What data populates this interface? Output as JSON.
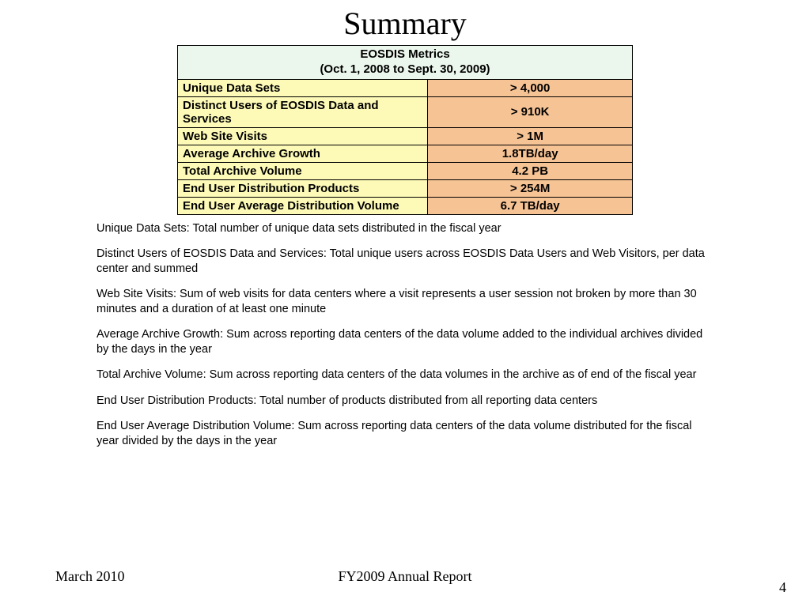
{
  "title": "Summary",
  "table": {
    "header_line1": "EOSDIS Metrics",
    "header_line2": "(Oct. 1, 2008 to Sept. 30, 2009)",
    "header_bg": "#ebf6ec",
    "label_bg": "#fdfab7",
    "value_bg": "#f6c395",
    "rows": [
      {
        "label": "Unique Data Sets",
        "value": "> 4,000"
      },
      {
        "label": "Distinct Users of EOSDIS Data and Services",
        "value": "> 910K"
      },
      {
        "label": "Web Site Visits",
        "value": "> 1M"
      },
      {
        "label": "Average Archive Growth",
        "value": "1.8TB/day"
      },
      {
        "label": "Total Archive Volume",
        "value": "4.2 PB"
      },
      {
        "label": "End User Distribution Products",
        "value": "> 254M"
      },
      {
        "label": "End User Average Distribution Volume",
        "value": "6.7 TB/day"
      }
    ]
  },
  "definitions": [
    "Unique Data Sets: Total number of unique data sets distributed in the fiscal year",
    "Distinct Users of EOSDIS Data and Services: Total unique users across EOSDIS Data Users and Web Visitors, per data center and summed",
    "Web Site Visits: Sum of web visits for data centers where a visit represents a user session not broken by more than 30 minutes and a duration of at least one minute",
    "Average Archive Growth:  Sum across reporting data centers of the data volume added to the individual archives divided by the days in the year",
    "Total Archive Volume: Sum across reporting data centers of the data volumes in the archive as of end of the fiscal year",
    "End User Distribution Products: Total number of products distributed from all reporting data centers",
    "End User Average Distribution Volume:  Sum across reporting data centers of the data volume distributed for the fiscal year divided by the days in the year"
  ],
  "footer": {
    "date": "March 2010",
    "center": "FY2009 Annual Report",
    "page": "4"
  }
}
